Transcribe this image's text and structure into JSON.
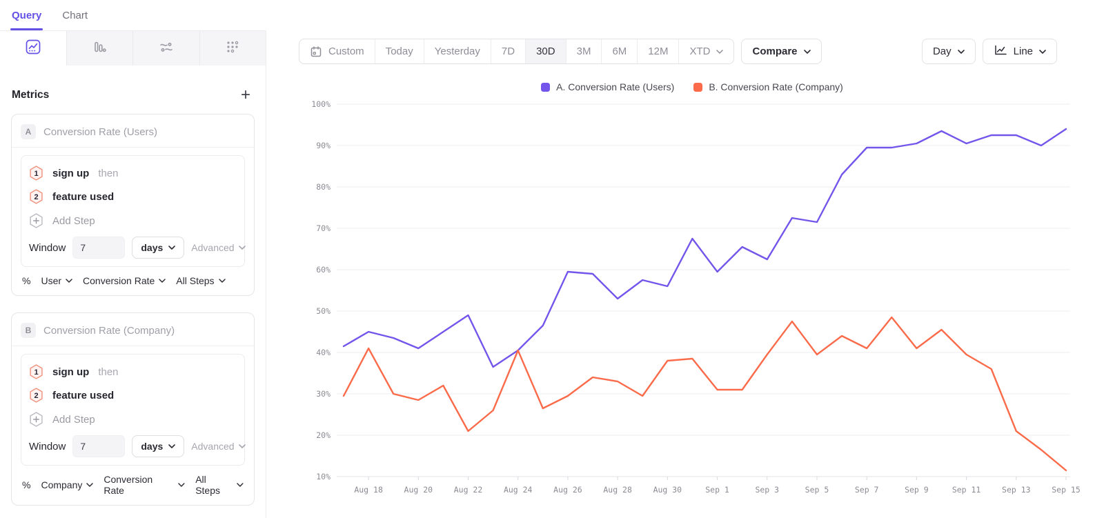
{
  "colors": {
    "accent": "#6351e6",
    "series_a": "#7355EC",
    "series_b": "#FB6B4A"
  },
  "sidebar": {
    "tabs": [
      {
        "label": "Query"
      },
      {
        "label": "Chart"
      }
    ],
    "view_icons": [
      "line-chart",
      "bar-chart",
      "flows",
      "retention"
    ],
    "metrics_header": {
      "title": "Metrics",
      "add_label": "+"
    },
    "metrics": [
      {
        "badge": "A",
        "title": "Conversion Rate (Users)",
        "steps": [
          {
            "num": "1",
            "name": "sign up",
            "suffix": "then"
          },
          {
            "num": "2",
            "name": "feature used",
            "suffix": ""
          }
        ],
        "add_step_label": "Add Step",
        "window": {
          "label": "Window",
          "value": "7",
          "unit": "days",
          "advanced_label": "Advanced"
        },
        "measure": {
          "prefix": "%",
          "entity": "User",
          "metric": "Conversion Rate",
          "steps": "All Steps"
        }
      },
      {
        "badge": "B",
        "title": "Conversion Rate (Company)",
        "steps": [
          {
            "num": "1",
            "name": "sign up",
            "suffix": "then"
          },
          {
            "num": "2",
            "name": "feature used",
            "suffix": ""
          }
        ],
        "add_step_label": "Add Step",
        "window": {
          "label": "Window",
          "value": "7",
          "unit": "days",
          "advanced_label": "Advanced"
        },
        "measure": {
          "prefix": "%",
          "entity": "Company",
          "metric": "Conversion Rate",
          "steps": "All Steps"
        }
      }
    ]
  },
  "toolbar": {
    "date_ranges": [
      {
        "label": "Custom",
        "icon": "calendar"
      },
      {
        "label": "Today"
      },
      {
        "label": "Yesterday"
      },
      {
        "label": "7D"
      },
      {
        "label": "30D",
        "active": true
      },
      {
        "label": "3M"
      },
      {
        "label": "6M"
      },
      {
        "label": "12M"
      },
      {
        "label": "XTD",
        "chevron": true
      }
    ],
    "compare_label": "Compare",
    "granularity_label": "Day",
    "chart_type_label": "Line"
  },
  "chart_data": {
    "type": "line",
    "title": "",
    "x": [
      "Aug 17",
      "Aug 18",
      "Aug 19",
      "Aug 20",
      "Aug 21",
      "Aug 22",
      "Aug 23",
      "Aug 24",
      "Aug 25",
      "Aug 26",
      "Aug 27",
      "Aug 28",
      "Aug 29",
      "Aug 30",
      "Aug 31",
      "Sep 1",
      "Sep 2",
      "Sep 3",
      "Sep 4",
      "Sep 5",
      "Sep 6",
      "Sep 7",
      "Sep 8",
      "Sep 9",
      "Sep 10",
      "Sep 11",
      "Sep 12",
      "Sep 13",
      "Sep 14",
      "Sep 15"
    ],
    "x_tick_labels": [
      "Aug 18",
      "Aug 20",
      "Aug 22",
      "Aug 24",
      "Aug 26",
      "Aug 28",
      "Aug 30",
      "Sep 1",
      "Sep 3",
      "Sep 5",
      "Sep 7",
      "Sep 9",
      "Sep 11",
      "Sep 13",
      "Sep 15"
    ],
    "y_ticks": [
      "100%",
      "90%",
      "80%",
      "70%",
      "60%",
      "50%",
      "40%",
      "30%",
      "20%",
      "10%"
    ],
    "ylim": [
      10,
      100
    ],
    "grid": true,
    "legend_position": "top",
    "series": [
      {
        "name": "A. Conversion Rate (Users)",
        "color": "#7355EC",
        "values": [
          41.5,
          45,
          43.5,
          41,
          45,
          49,
          36.5,
          40.5,
          46.5,
          59.5,
          59,
          53,
          57.5,
          56,
          67.5,
          59.5,
          65.5,
          62.5,
          72.5,
          71.5,
          83,
          89.5,
          89.5,
          90.5,
          93.5,
          90.5,
          92.5,
          92.5,
          90,
          94
        ]
      },
      {
        "name": "B. Conversion Rate (Company)",
        "color": "#FB6B4A",
        "values": [
          29.5,
          41,
          30,
          28.5,
          32,
          21,
          26,
          40.5,
          26.5,
          29.5,
          34,
          33,
          29.5,
          38,
          38.5,
          31,
          31,
          39.5,
          47.5,
          39.5,
          44,
          41,
          48.5,
          41,
          45.5,
          39.5,
          36,
          21,
          16.5,
          11.5
        ]
      }
    ]
  }
}
